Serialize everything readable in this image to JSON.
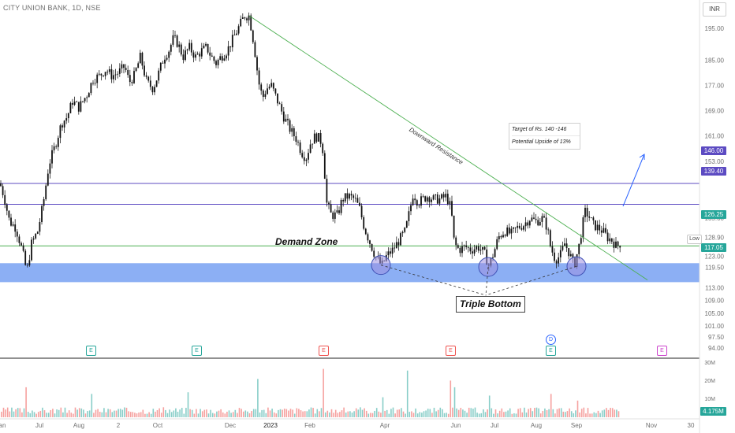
{
  "header": {
    "title": "CITY UNION BANK, 1D, NSE",
    "currency": "INR"
  },
  "colors": {
    "up": "#26a69a",
    "down": "#ef5350",
    "demand_zone": "#5b8def",
    "resistance_line": "#4caf50",
    "support_line": "#4caf50",
    "level_line": "#5c4bc2",
    "arrow": "#2962ff",
    "circle_fill": "#9c8fe0",
    "circle_stroke": "#3f51b5"
  },
  "annotations": {
    "demand_zone": "Demand Zone",
    "triple_bottom": "Triple Bottom",
    "downward_resistance": "Downward Resistance",
    "target_line1": "Target of Rs. 140 -146",
    "target_line2": "Potential Upside of 13%",
    "low_tag": "Low"
  },
  "price_labels": {
    "level_146": "146.00",
    "level_139": "139.40",
    "last_price": "126.25",
    "low": "117.05",
    "volume_last": "4.175M"
  },
  "chart_data": {
    "type": "candlestick",
    "title": "CITY UNION BANK, 1D, NSE",
    "x_ticks": [
      "an",
      "Jul",
      "Aug",
      "2",
      "Oct",
      "Dec",
      "2023",
      "Feb",
      "Apr",
      "Jun",
      "Jul",
      "Aug",
      "Sep",
      "Nov",
      "30"
    ],
    "y_ticks": [
      "195.00",
      "185.00",
      "177.00",
      "169.00",
      "161.00",
      "153.00",
      "146.00",
      "139.40",
      "135.00",
      "128.90",
      "126.25",
      "123.00",
      "119.50",
      "117.05",
      "113.00",
      "109.00",
      "105.00",
      "101.00",
      "97.50",
      "94.00"
    ],
    "volume_ticks": [
      "30M",
      "20M",
      "10M"
    ],
    "horizontal_levels": [
      146.0,
      139.4,
      126.25
    ],
    "demand_zone": [
      114.8,
      120.8
    ],
    "ylim": [
      92,
      202
    ],
    "price_path": [
      [
        0,
        146
      ],
      [
        5,
        142
      ],
      [
        12,
        134
      ],
      [
        20,
        132
      ],
      [
        28,
        125
      ],
      [
        34,
        118
      ],
      [
        40,
        127
      ],
      [
        48,
        131
      ],
      [
        55,
        140
      ],
      [
        62,
        152
      ],
      [
        70,
        158
      ],
      [
        78,
        165
      ],
      [
        85,
        167
      ],
      [
        92,
        172
      ],
      [
        100,
        170
      ],
      [
        110,
        174
      ],
      [
        118,
        179
      ],
      [
        126,
        180
      ],
      [
        134,
        182
      ],
      [
        142,
        180
      ],
      [
        150,
        181
      ],
      [
        158,
        183
      ],
      [
        164,
        178
      ],
      [
        170,
        180
      ],
      [
        178,
        186
      ],
      [
        186,
        178
      ],
      [
        194,
        176
      ],
      [
        200,
        180
      ],
      [
        208,
        186
      ],
      [
        214,
        188
      ],
      [
        220,
        192
      ],
      [
        226,
        190
      ],
      [
        232,
        186
      ],
      [
        240,
        189
      ],
      [
        248,
        186
      ],
      [
        256,
        188
      ],
      [
        262,
        189
      ],
      [
        268,
        186
      ],
      [
        274,
        184
      ],
      [
        280,
        186
      ],
      [
        288,
        188
      ],
      [
        296,
        192
      ],
      [
        304,
        196
      ],
      [
        310,
        199
      ],
      [
        316,
        199
      ],
      [
        322,
        190
      ],
      [
        328,
        178
      ],
      [
        333,
        173
      ],
      [
        338,
        176
      ],
      [
        344,
        177
      ],
      [
        352,
        172
      ],
      [
        360,
        167
      ],
      [
        368,
        163
      ],
      [
        376,
        160
      ],
      [
        382,
        156
      ],
      [
        388,
        154
      ],
      [
        394,
        159
      ],
      [
        400,
        161
      ],
      [
        406,
        160
      ],
      [
        410,
        156
      ],
      [
        414,
        140
      ],
      [
        420,
        136
      ],
      [
        428,
        136
      ],
      [
        434,
        141
      ],
      [
        442,
        142
      ],
      [
        450,
        141
      ],
      [
        456,
        138
      ],
      [
        462,
        132
      ],
      [
        468,
        128
      ],
      [
        476,
        123
      ],
      [
        484,
        120
      ],
      [
        490,
        123
      ],
      [
        498,
        125
      ],
      [
        506,
        128
      ],
      [
        514,
        131
      ],
      [
        520,
        138
      ],
      [
        524,
        143
      ],
      [
        530,
        140
      ],
      [
        536,
        141
      ],
      [
        542,
        142
      ],
      [
        550,
        141
      ],
      [
        558,
        141
      ],
      [
        566,
        142
      ],
      [
        572,
        138
      ],
      [
        576,
        127
      ],
      [
        582,
        125
      ],
      [
        590,
        126
      ],
      [
        598,
        125
      ],
      [
        606,
        126
      ],
      [
        614,
        124
      ],
      [
        620,
        120
      ],
      [
        626,
        124
      ],
      [
        632,
        129
      ],
      [
        640,
        131
      ],
      [
        648,
        130
      ],
      [
        656,
        132
      ],
      [
        664,
        133
      ],
      [
        672,
        135
      ],
      [
        680,
        134
      ],
      [
        688,
        135
      ],
      [
        694,
        132
      ],
      [
        698,
        126
      ],
      [
        704,
        122
      ],
      [
        710,
        123
      ],
      [
        716,
        127
      ],
      [
        722,
        124
      ],
      [
        728,
        120
      ],
      [
        734,
        126
      ],
      [
        738,
        132
      ],
      [
        742,
        137
      ],
      [
        746,
        136
      ],
      [
        752,
        133
      ],
      [
        758,
        132
      ],
      [
        764,
        131
      ],
      [
        770,
        129
      ],
      [
        776,
        128
      ],
      [
        782,
        126
      ],
      [
        786,
        127
      ]
    ],
    "volume_spikes": [
      [
        34,
        18
      ],
      [
        117,
        14
      ],
      [
        238,
        15
      ],
      [
        327,
        23
      ],
      [
        410,
        29
      ],
      [
        518,
        28
      ],
      [
        572,
        22
      ],
      [
        620,
        13
      ],
      [
        698,
        14
      ],
      [
        732,
        10
      ],
      [
        576,
        18
      ],
      [
        486,
        12
      ]
    ]
  }
}
